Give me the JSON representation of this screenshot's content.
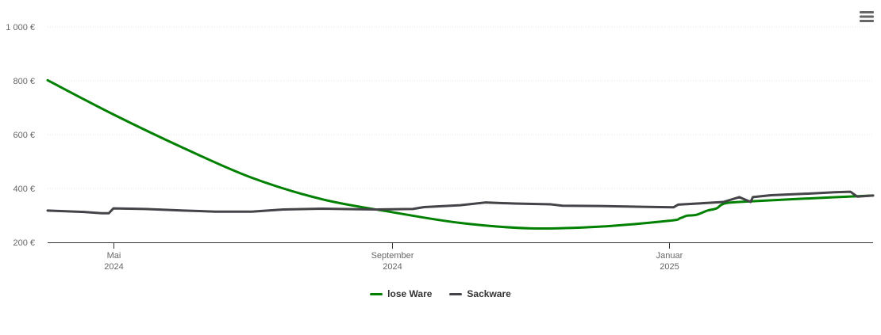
{
  "chart_data": {
    "type": "line",
    "title": "",
    "xlabel": "",
    "ylabel": "",
    "x_ticks": [
      {
        "label_line1": "Mai",
        "label_line2": "2024",
        "date": "2024-05-01"
      },
      {
        "label_line1": "September",
        "label_line2": "2024",
        "date": "2024-09-01"
      },
      {
        "label_line1": "Januar",
        "label_line2": "2025",
        "date": "2025-01-01"
      }
    ],
    "y_ticks": [
      {
        "value": 200,
        "label": "200 €"
      },
      {
        "value": 400,
        "label": "400 €"
      },
      {
        "value": 600,
        "label": "600 €"
      },
      {
        "value": 800,
        "label": "800 €"
      },
      {
        "value": 1000,
        "label": "1 000 €"
      }
    ],
    "xlim": [
      "2024-04-02",
      "2025-04-01"
    ],
    "ylim": [
      200,
      1000
    ],
    "grid": "horizontal",
    "legend_position": "bottom-center",
    "series": [
      {
        "name": "lose Ware",
        "color": "#008000",
        "points": [
          {
            "x": "2024-04-02",
            "y": 802
          },
          {
            "x": "2024-05-01",
            "y": 675
          },
          {
            "x": "2024-06-01",
            "y": 550
          },
          {
            "x": "2024-07-01",
            "y": 440
          },
          {
            "x": "2024-08-01",
            "y": 360
          },
          {
            "x": "2024-09-01",
            "y": 312
          },
          {
            "x": "2024-10-01",
            "y": 272
          },
          {
            "x": "2024-11-01",
            "y": 252
          },
          {
            "x": "2024-12-01",
            "y": 258
          },
          {
            "x": "2025-01-01",
            "y": 280
          },
          {
            "x": "2025-01-06",
            "y": 290
          },
          {
            "x": "2025-01-09",
            "y": 299
          },
          {
            "x": "2025-01-13",
            "y": 302
          },
          {
            "x": "2025-01-18",
            "y": 318
          },
          {
            "x": "2025-01-22",
            "y": 326
          },
          {
            "x": "2025-01-25",
            "y": 343
          },
          {
            "x": "2025-02-01",
            "y": 350
          },
          {
            "x": "2025-03-01",
            "y": 362
          },
          {
            "x": "2025-04-01",
            "y": 374
          }
        ]
      },
      {
        "name": "Sackware",
        "color": "#434348",
        "points": [
          {
            "x": "2024-04-02",
            "y": 318
          },
          {
            "x": "2024-04-18",
            "y": 313
          },
          {
            "x": "2024-04-26",
            "y": 308
          },
          {
            "x": "2024-04-29",
            "y": 308
          },
          {
            "x": "2024-05-01",
            "y": 326
          },
          {
            "x": "2024-05-15",
            "y": 324
          },
          {
            "x": "2024-06-01",
            "y": 318
          },
          {
            "x": "2024-06-15",
            "y": 314
          },
          {
            "x": "2024-07-01",
            "y": 314
          },
          {
            "x": "2024-07-15",
            "y": 322
          },
          {
            "x": "2024-08-01",
            "y": 325
          },
          {
            "x": "2024-08-15",
            "y": 323
          },
          {
            "x": "2024-08-25",
            "y": 322
          },
          {
            "x": "2024-09-10",
            "y": 324
          },
          {
            "x": "2024-09-15",
            "y": 331
          },
          {
            "x": "2024-10-01",
            "y": 338
          },
          {
            "x": "2024-10-12",
            "y": 348
          },
          {
            "x": "2024-10-25",
            "y": 344
          },
          {
            "x": "2024-11-10",
            "y": 341
          },
          {
            "x": "2024-11-15",
            "y": 336
          },
          {
            "x": "2024-12-01",
            "y": 335
          },
          {
            "x": "2024-12-20",
            "y": 332
          },
          {
            "x": "2025-01-03",
            "y": 330
          },
          {
            "x": "2025-01-05",
            "y": 340
          },
          {
            "x": "2025-01-15",
            "y": 345
          },
          {
            "x": "2025-01-25",
            "y": 350
          },
          {
            "x": "2025-02-01",
            "y": 368
          },
          {
            "x": "2025-02-06",
            "y": 350
          },
          {
            "x": "2025-02-07",
            "y": 368
          },
          {
            "x": "2025-02-15",
            "y": 375
          },
          {
            "x": "2025-03-01",
            "y": 380
          },
          {
            "x": "2025-03-15",
            "y": 386
          },
          {
            "x": "2025-03-22",
            "y": 388
          },
          {
            "x": "2025-03-25",
            "y": 370
          },
          {
            "x": "2025-04-01",
            "y": 374
          }
        ]
      }
    ]
  },
  "menu": {
    "icon": "hamburger-menu-icon"
  },
  "styles": {
    "grid_color": "#e6e6e6",
    "axis_color": "#333333",
    "label_color": "#666666"
  }
}
